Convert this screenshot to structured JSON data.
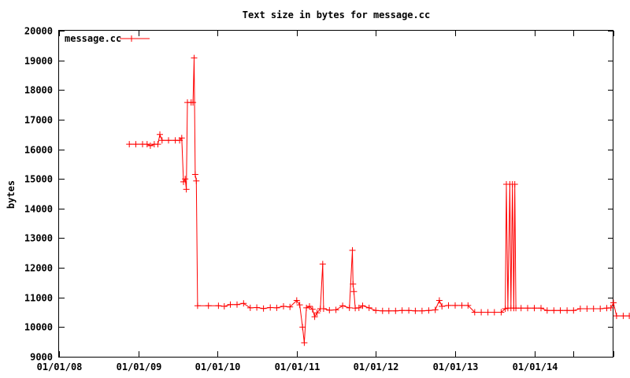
{
  "chart_data": {
    "type": "line",
    "title": "Text size in bytes for message.cc",
    "xlabel": "",
    "ylabel": "bytes",
    "ylim": [
      9000,
      20000
    ],
    "xlim": [
      "2008-01-01",
      "2015-01-01"
    ],
    "yticks": [
      9000,
      10000,
      11000,
      12000,
      13000,
      14000,
      15000,
      16000,
      17000,
      18000,
      19000,
      20000
    ],
    "xticks": [
      {
        "date": "2008-01-01",
        "label": "01/01/08"
      },
      {
        "date": "2009-01-01",
        "label": "01/01/09"
      },
      {
        "date": "2010-01-01",
        "label": "01/01/10"
      },
      {
        "date": "2011-01-01",
        "label": "01/01/11"
      },
      {
        "date": "2012-01-01",
        "label": "01/01/12"
      },
      {
        "date": "2013-01-01",
        "label": "01/01/13"
      },
      {
        "date": "2014-01-01",
        "label": "01/01/14"
      },
      {
        "date": "2014-07-01",
        "label": ""
      },
      {
        "date": "2015-01-01",
        "label": ""
      }
    ],
    "grid": false,
    "legend_position": "top-left",
    "color": "#ff0000",
    "series": [
      {
        "name": "message.cc",
        "points": [
          [
            "2008-11-20",
            16170
          ],
          [
            "2008-12-20",
            16170
          ],
          [
            "2009-01-20",
            16170
          ],
          [
            "2009-02-10",
            16170
          ],
          [
            "2009-02-25",
            16120
          ],
          [
            "2009-03-15",
            16170
          ],
          [
            "2009-04-01",
            16170
          ],
          [
            "2009-04-10",
            16500
          ],
          [
            "2009-04-20",
            16300
          ],
          [
            "2009-05-20",
            16300
          ],
          [
            "2009-06-20",
            16300
          ],
          [
            "2009-07-10",
            16300
          ],
          [
            "2009-07-20",
            16380
          ],
          [
            "2009-07-28",
            14900
          ],
          [
            "2009-08-05",
            15000
          ],
          [
            "2009-08-10",
            14650
          ],
          [
            "2009-08-15",
            17580
          ],
          [
            "2009-09-01",
            17580
          ],
          [
            "2009-09-10",
            17580
          ],
          [
            "2009-09-15",
            19080
          ],
          [
            "2009-09-20",
            15150
          ],
          [
            "2009-09-25",
            14930
          ],
          [
            "2009-10-01",
            10720
          ],
          [
            "2009-11-20",
            10720
          ],
          [
            "2010-01-05",
            10720
          ],
          [
            "2010-02-01",
            10700
          ],
          [
            "2010-03-01",
            10760
          ],
          [
            "2010-04-01",
            10760
          ],
          [
            "2010-05-01",
            10800
          ],
          [
            "2010-06-01",
            10650
          ],
          [
            "2010-07-01",
            10660
          ],
          [
            "2010-08-01",
            10630
          ],
          [
            "2010-09-01",
            10660
          ],
          [
            "2010-10-01",
            10650
          ],
          [
            "2010-11-01",
            10700
          ],
          [
            "2010-12-01",
            10680
          ],
          [
            "2011-01-01",
            10900
          ],
          [
            "2011-01-15",
            10750
          ],
          [
            "2011-01-28",
            10000
          ],
          [
            "2011-02-05",
            9470
          ],
          [
            "2011-02-15",
            10650
          ],
          [
            "2011-03-01",
            10700
          ],
          [
            "2011-03-15",
            10600
          ],
          [
            "2011-03-25",
            10350
          ],
          [
            "2011-04-05",
            10480
          ],
          [
            "2011-04-20",
            10620
          ],
          [
            "2011-05-01",
            12130
          ],
          [
            "2011-05-05",
            10620
          ],
          [
            "2011-06-01",
            10570
          ],
          [
            "2011-07-01",
            10580
          ],
          [
            "2011-08-01",
            10720
          ],
          [
            "2011-09-01",
            10650
          ],
          [
            "2011-09-15",
            12590
          ],
          [
            "2011-09-18",
            11450
          ],
          [
            "2011-09-22",
            11200
          ],
          [
            "2011-09-28",
            10640
          ],
          [
            "2011-10-15",
            10650
          ],
          [
            "2011-11-01",
            10720
          ],
          [
            "2011-12-01",
            10650
          ],
          [
            "2012-01-01",
            10560
          ],
          [
            "2012-02-01",
            10550
          ],
          [
            "2012-03-01",
            10550
          ],
          [
            "2012-04-01",
            10550
          ],
          [
            "2012-05-01",
            10560
          ],
          [
            "2012-06-01",
            10560
          ],
          [
            "2012-07-01",
            10550
          ],
          [
            "2012-08-01",
            10550
          ],
          [
            "2012-09-01",
            10560
          ],
          [
            "2012-10-01",
            10580
          ],
          [
            "2012-10-20",
            10900
          ],
          [
            "2012-11-01",
            10700
          ],
          [
            "2012-12-01",
            10730
          ],
          [
            "2013-01-01",
            10730
          ],
          [
            "2013-02-01",
            10730
          ],
          [
            "2013-03-01",
            10730
          ],
          [
            "2013-04-01",
            10500
          ],
          [
            "2013-05-01",
            10500
          ],
          [
            "2013-06-01",
            10500
          ],
          [
            "2013-07-01",
            10500
          ],
          [
            "2013-08-01",
            10500
          ],
          [
            "2013-08-20",
            10620
          ],
          [
            "2013-08-25",
            14820
          ],
          [
            "2013-09-01",
            10640
          ],
          [
            "2013-09-10",
            14820
          ],
          [
            "2013-09-15",
            10640
          ],
          [
            "2013-09-22",
            14820
          ],
          [
            "2013-09-28",
            10640
          ],
          [
            "2013-10-03",
            14820
          ],
          [
            "2013-10-08",
            10640
          ],
          [
            "2013-11-01",
            10640
          ],
          [
            "2013-12-01",
            10640
          ],
          [
            "2014-01-01",
            10640
          ],
          [
            "2014-02-01",
            10640
          ],
          [
            "2014-03-01",
            10560
          ],
          [
            "2014-04-01",
            10560
          ],
          [
            "2014-05-01",
            10560
          ],
          [
            "2014-06-01",
            10560
          ],
          [
            "2014-07-01",
            10560
          ],
          [
            "2014-08-01",
            10620
          ],
          [
            "2014-09-01",
            10620
          ],
          [
            "2014-10-01",
            10620
          ],
          [
            "2014-11-01",
            10620
          ],
          [
            "2014-12-01",
            10640
          ],
          [
            "2014-12-20",
            10650
          ],
          [
            "2015-01-01",
            10820
          ],
          [
            "2015-01-15",
            10380
          ],
          [
            "2015-02-15",
            10380
          ],
          [
            "2015-03-15",
            10380
          ]
        ]
      }
    ]
  }
}
